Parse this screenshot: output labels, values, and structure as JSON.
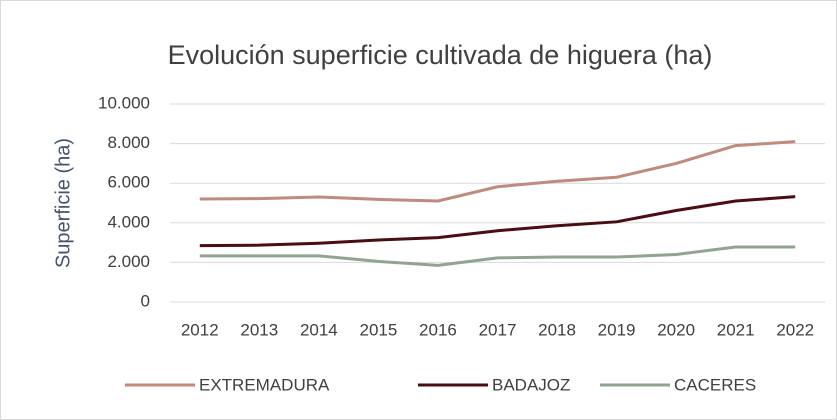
{
  "chart_data": {
    "type": "line",
    "title": "Evolución superficie cultivada de higuera (ha)",
    "y_label": "Superficie (ha)",
    "categories": [
      "2012",
      "2013",
      "2014",
      "2015",
      "2016",
      "2017",
      "2018",
      "2019",
      "2020",
      "2021",
      "2022"
    ],
    "series": [
      {
        "name": "EXTREMADURA",
        "color": "#c08a7d",
        "values": [
          5200,
          5220,
          5300,
          5180,
          5100,
          5820,
          6100,
          6300,
          7000,
          7900,
          8100
        ]
      },
      {
        "name": "BADAJOZ",
        "color": "#4a0d12",
        "values": [
          2850,
          2870,
          2970,
          3130,
          3250,
          3600,
          3850,
          4050,
          4620,
          5100,
          5320
        ]
      },
      {
        "name": "CACERES",
        "color": "#8fa590",
        "values": [
          2330,
          2330,
          2330,
          2050,
          1850,
          2230,
          2270,
          2270,
          2400,
          2780,
          2780
        ]
      }
    ],
    "ylim": [
      0,
      10000
    ],
    "yticks": [
      0,
      {
        "value": 2000,
        "label": "2.000"
      },
      {
        "value": 4000,
        "label": "4.000"
      },
      {
        "value": 6000,
        "label": "6.000"
      },
      {
        "value": 8000,
        "label": "8.000"
      },
      {
        "value": 10000,
        "label": "10.000"
      }
    ],
    "grid": true,
    "legend": "bottom"
  }
}
